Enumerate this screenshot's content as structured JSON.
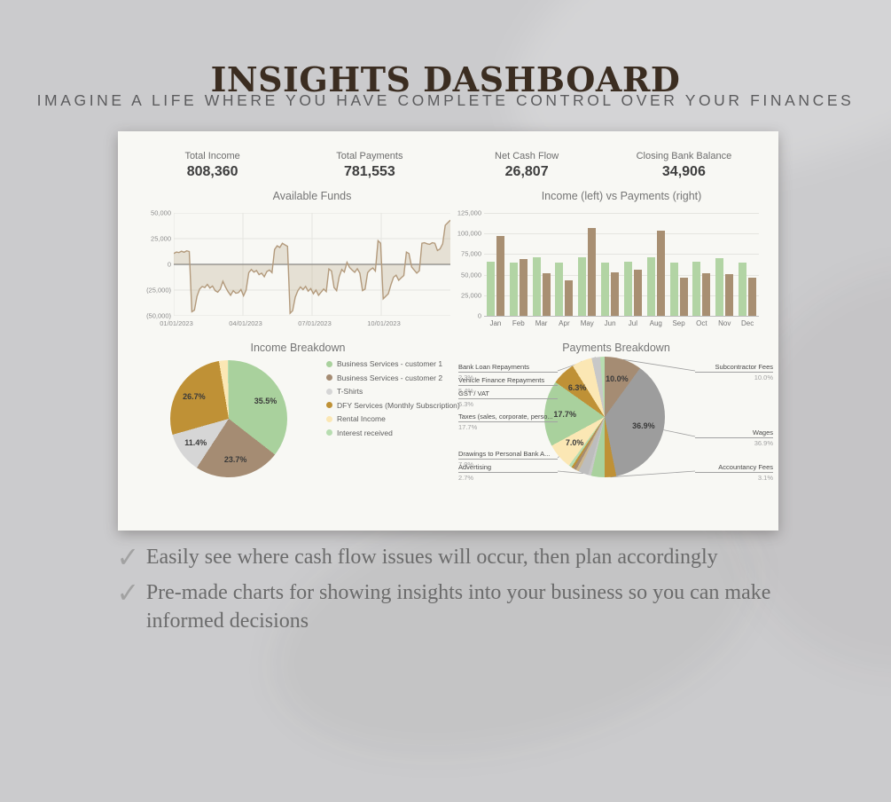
{
  "page": {
    "title": "INSIGHTS DASHBOARD",
    "subtitle": "IMAGINE A LIFE WHERE YOU HAVE COMPLETE CONTROL OVER YOUR FINANCES",
    "bullets": [
      "Easily see where cash flow issues will occur, then plan accordingly",
      "Pre-made charts for showing insights into your business so you can make informed decisions"
    ]
  },
  "colors": {
    "background": "#cbcbcd",
    "card": "#f8f8f4",
    "title_brown": "#3b2d21",
    "subtitle_gray": "#5c5c5e",
    "green": "#a9d19d",
    "brown": "#a58c73",
    "gold": "#bf9136",
    "pale_yellow": "#fbe7b4",
    "pale_green": "#b7ddb0",
    "light_gray": "#d6d6d6",
    "wages_gray": "#9d9d9d",
    "area_line": "#b39a7c"
  },
  "dashboard": {
    "kpis": [
      {
        "label": "Total Income",
        "value": "808,360"
      },
      {
        "label": "Total Payments",
        "value": "781,553"
      },
      {
        "label": "Net Cash Flow",
        "value": "26,807"
      },
      {
        "label": "Closing Bank Balance",
        "value": "34,906"
      }
    ]
  },
  "chart_data": [
    {
      "type": "area",
      "title": "Available Funds",
      "x_ticks": [
        "01/01/2023",
        "04/01/2023",
        "07/01/2023",
        "10/01/2023"
      ],
      "y_ticks": [
        "50,000",
        "25,000",
        "0",
        "(25,000)",
        "(50,000)"
      ],
      "ylim": [
        -50000,
        50000
      ],
      "grid": true,
      "line_color": "#b39a7c",
      "fill_color": "rgba(181,161,131,0.28)",
      "values": [
        10500,
        12000,
        11500,
        12800,
        11800,
        13200,
        12500,
        -46000,
        -44500,
        -31000,
        -24000,
        -21500,
        -22500,
        -19500,
        -23000,
        -21000,
        -25500,
        -27000,
        -24000,
        -16500,
        -22000,
        -26500,
        -30000,
        -25500,
        -28000,
        -27500,
        -24500,
        -30500,
        -25000,
        -8000,
        -5000,
        -7500,
        -6000,
        -10000,
        -8500,
        -12000,
        -7000,
        -5500,
        -8000,
        14500,
        18000,
        16500,
        20500,
        19000,
        17500,
        -47500,
        -45000,
        -32000,
        -25500,
        -22000,
        -24500,
        -21500,
        -26000,
        -23500,
        -28500,
        -25000,
        -30000,
        -27000,
        -24000,
        -26500,
        -4500,
        -6500,
        -22500,
        -25500,
        -12000,
        -5000,
        -7500,
        2000,
        -3000,
        -5500,
        -7800,
        -4200,
        -8500,
        -25500,
        -24000,
        -8000,
        -5200,
        -3500,
        -6500,
        23000,
        20500,
        -33500,
        -31000,
        -28500,
        -20000,
        -12500,
        -10500,
        -15500,
        -13000,
        -10800,
        12000,
        10500,
        -2500,
        -5500,
        -8500,
        -6200,
        20500,
        21000,
        20000,
        19500,
        21000,
        20500,
        13500,
        15000,
        20000,
        38000,
        40500,
        43000
      ]
    },
    {
      "type": "bar",
      "title": "Income (left) vs Payments (right)",
      "categories": [
        "Jan",
        "Feb",
        "Mar",
        "Apr",
        "May",
        "Jun",
        "Jul",
        "Aug",
        "Sep",
        "Oct",
        "Nov",
        "Dec"
      ],
      "y_ticks": [
        "125,000",
        "100,000",
        "75,000",
        "50,000",
        "25,000",
        "0"
      ],
      "ylim": [
        0,
        125000
      ],
      "grid": true,
      "series": [
        {
          "name": "Income",
          "color": "#b2d4a4",
          "values": [
            66000,
            64500,
            71000,
            64500,
            71000,
            64500,
            66000,
            71000,
            64500,
            66000,
            70000,
            64500
          ]
        },
        {
          "name": "Payments",
          "color": "#a88f72",
          "values": [
            97000,
            69000,
            52000,
            43500,
            106500,
            53000,
            56000,
            104000,
            46000,
            52000,
            50500,
            46000
          ]
        }
      ]
    },
    {
      "type": "pie",
      "title": "Income Breakdown",
      "legend_position": "right",
      "slices": [
        {
          "label": "Business Services - customer 1",
          "pct": 35.5,
          "color": "#a9d19d",
          "inside_label": "35.5%"
        },
        {
          "label": "Business Services - customer 2",
          "pct": 23.7,
          "color": "#a58c73",
          "inside_label": "23.7%"
        },
        {
          "label": "T-Shirts",
          "pct": 11.4,
          "color": "#d6d6d6",
          "inside_label": "11.4%"
        },
        {
          "label": "DFY Services (Monthly Subscription)",
          "pct": 26.7,
          "color": "#bf9136",
          "inside_label": "26.7%"
        },
        {
          "label": "Rental Income",
          "pct": 2.4,
          "color": "#fbe7b4"
        },
        {
          "label": "Interest received",
          "pct": 0.3,
          "color": "#b7ddb0"
        }
      ]
    },
    {
      "type": "pie",
      "title": "Payments Breakdown",
      "legend_position": "callouts",
      "slices": [
        {
          "label": "Subcontractor Fees",
          "pct": 10.0,
          "color": "#a58c73",
          "inside_label": "10.0%",
          "callout": {
            "side": "right",
            "slot": 0,
            "pct_label": "10.0%"
          }
        },
        {
          "label": "Wages",
          "pct": 36.9,
          "color": "#9d9d9d",
          "inside_label": "36.9%",
          "callout": {
            "side": "right",
            "slot": 1,
            "pct_label": "36.9%"
          }
        },
        {
          "label": "Accountancy Fees",
          "pct": 3.1,
          "color": "#bf9136",
          "callout": {
            "side": "right",
            "slot": 2,
            "pct_label": "3.1%"
          }
        },
        {
          "label": "",
          "pct": 3.6,
          "color": "#a9d19d"
        },
        {
          "label": "",
          "pct": 0.8,
          "color": "#c8c8c8"
        },
        {
          "label": "Advertising",
          "pct": 2.7,
          "color": "#bdbdbd",
          "callout": {
            "side": "left",
            "slot": 5,
            "pct_label": "2.7%"
          }
        },
        {
          "label": "",
          "pct": 0.8,
          "color": "#cdb78e"
        },
        {
          "label": "",
          "pct": 0.8,
          "color": "#a58c73"
        },
        {
          "label": "",
          "pct": 0.6,
          "color": "#bf9136"
        },
        {
          "label": "",
          "pct": 0.8,
          "color": "#b7ddb0"
        },
        {
          "label": "Drawings to Personal Bank A...",
          "pct": 7.0,
          "color": "#fbe7b4",
          "inside_label": "7.0%",
          "callout": {
            "side": "left",
            "slot": 4,
            "pct_label": "7.0%"
          }
        },
        {
          "label": "Taxes (sales, corporate, perso...",
          "pct": 17.7,
          "color": "#a9d19d",
          "inside_label": "17.7%",
          "callout": {
            "side": "left",
            "slot": 3,
            "pct_label": "17.7%"
          }
        },
        {
          "label": "GST / VAT",
          "pct": 6.3,
          "color": "#bf9136",
          "inside_label": "6.3%",
          "callout": {
            "side": "left",
            "slot": 2,
            "pct_label": "6.3%"
          }
        },
        {
          "label": "Vehicle Finance Repayments",
          "pct": 5.4,
          "color": "#fbe7b4",
          "callout": {
            "side": "left",
            "slot": 1,
            "pct_label": "5.4%"
          }
        },
        {
          "label": "Bank Loan Repayments",
          "pct": 2.3,
          "color": "#c8c8c8",
          "callout": {
            "side": "left",
            "slot": 0,
            "pct_label": "2.3%"
          }
        },
        {
          "label": "",
          "pct": 1.2,
          "color": "#b7ddb0"
        }
      ]
    }
  ]
}
